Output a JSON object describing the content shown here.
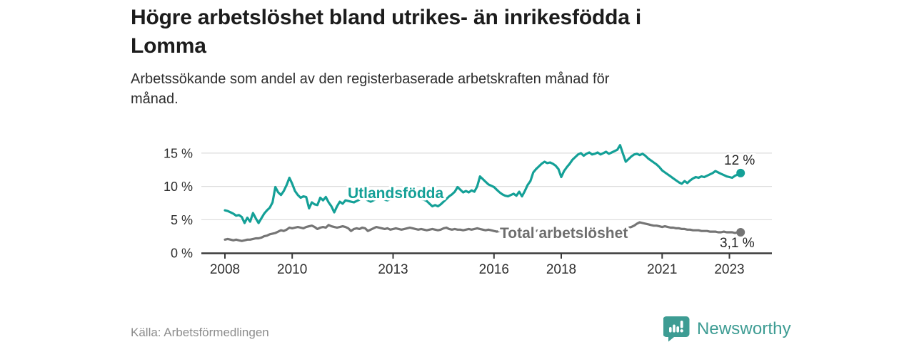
{
  "header": {
    "title_line1": "Högre arbetslöshet bland utrikes- än inrikesfödda i",
    "title_line2": "Lomma",
    "subtitle_line1": "Arbetssökande som andel av den registerbaserade arbetskraften månad för",
    "subtitle_line2": "månad."
  },
  "footer": {
    "source": "Källa: Arbetsförmedlingen",
    "brand": "Newsworthy"
  },
  "colors": {
    "accent_teal": "#14A097",
    "gray_line": "#757575",
    "gray_label": "#6e6e6e",
    "axis": "#3a3a3a",
    "grid": "#dcdcdc"
  },
  "chart_data": {
    "type": "line",
    "title": "Högre arbetslöshet bland utrikes- än inrikesfödda i Lomma",
    "subtitle": "Arbetssökande som andel av den registerbaserade arbetskraften månad för månad.",
    "x_unit": "month",
    "x_start": "2008-01",
    "x_tick_years": [
      2008,
      2010,
      2013,
      2016,
      2018,
      2021,
      2023
    ],
    "y_ticks": [
      0,
      5,
      10,
      15
    ],
    "y_tick_suffix": " %",
    "ylim": [
      0,
      17
    ],
    "grid": "horizontal",
    "legend_position": "inline-labels",
    "series": [
      {
        "name": "Utlandsfödda",
        "color": "#14A097",
        "end_label": "12 %",
        "values": [
          6.4,
          6.3,
          6.1,
          5.9,
          5.6,
          5.7,
          5.4,
          4.5,
          5.3,
          4.7,
          6.0,
          5.2,
          4.5,
          5.2,
          5.9,
          6.4,
          6.8,
          7.6,
          9.9,
          9.1,
          8.7,
          9.3,
          10.2,
          11.3,
          10.4,
          9.3,
          8.7,
          8.3,
          8.5,
          8.4,
          6.7,
          7.6,
          7.3,
          7.2,
          8.3,
          7.9,
          8.4,
          7.6,
          7.0,
          6.1,
          7.0,
          7.7,
          7.4,
          7.9,
          7.8,
          7.7,
          7.6,
          7.8,
          8.0,
          8.3,
          8.1,
          7.9,
          7.7,
          7.9,
          8.1,
          8.4,
          8.2,
          8.0,
          7.9,
          8.1,
          8.3,
          8.5,
          8.4,
          8.2,
          8.4,
          8.6,
          8.8,
          8.6,
          8.5,
          8.3,
          8.1,
          8.0,
          7.8,
          7.4,
          7.0,
          7.2,
          7.0,
          7.3,
          7.7,
          8.1,
          8.5,
          8.8,
          9.2,
          9.9,
          9.5,
          9.1,
          9.3,
          9.1,
          9.4,
          9.2,
          10.0,
          11.5,
          11.1,
          10.7,
          10.3,
          10.1,
          9.9,
          9.5,
          9.1,
          8.8,
          8.6,
          8.5,
          8.7,
          8.9,
          8.6,
          9.2,
          8.5,
          9.3,
          10.2,
          10.8,
          12.1,
          12.6,
          13.0,
          13.4,
          13.7,
          13.5,
          13.6,
          13.4,
          13.1,
          12.6,
          11.4,
          12.3,
          12.9,
          13.4,
          14.0,
          14.4,
          14.8,
          15.0,
          14.6,
          14.9,
          15.1,
          14.8,
          14.9,
          15.1,
          14.8,
          15.0,
          15.2,
          14.9,
          15.1,
          15.3,
          15.5,
          16.2,
          14.9,
          13.7,
          14.1,
          14.5,
          14.8,
          14.9,
          14.7,
          14.9,
          14.6,
          14.2,
          13.9,
          13.6,
          13.3,
          12.9,
          12.4,
          12.1,
          11.8,
          11.5,
          11.2,
          10.9,
          10.6,
          10.4,
          10.8,
          10.5,
          10.9,
          11.2,
          11.4,
          11.3,
          11.5,
          11.4,
          11.6,
          11.8,
          12.0,
          12.3,
          12.1,
          11.9,
          11.7,
          11.5,
          11.4,
          11.3,
          11.6,
          11.8,
          12.0
        ]
      },
      {
        "name": "Total arbetslöshet",
        "color": "#757575",
        "end_label": "3,1 %",
        "values": [
          2.0,
          2.1,
          2.0,
          1.9,
          2.0,
          1.9,
          1.8,
          1.9,
          2.0,
          2.0,
          2.1,
          2.2,
          2.2,
          2.3,
          2.5,
          2.6,
          2.8,
          2.9,
          3.0,
          3.2,
          3.4,
          3.3,
          3.5,
          3.8,
          3.7,
          3.8,
          3.9,
          3.8,
          3.7,
          3.9,
          4.0,
          4.1,
          3.9,
          3.6,
          3.8,
          3.9,
          3.8,
          4.2,
          4.0,
          3.9,
          3.8,
          3.9,
          4.0,
          3.9,
          3.7,
          3.3,
          3.6,
          3.7,
          3.6,
          3.8,
          3.7,
          3.3,
          3.5,
          3.7,
          3.9,
          3.8,
          3.7,
          3.6,
          3.7,
          3.5,
          3.6,
          3.7,
          3.6,
          3.5,
          3.6,
          3.7,
          3.8,
          3.7,
          3.6,
          3.5,
          3.6,
          3.5,
          3.4,
          3.5,
          3.6,
          3.5,
          3.4,
          3.5,
          3.7,
          3.8,
          3.6,
          3.5,
          3.6,
          3.5,
          3.5,
          3.4,
          3.5,
          3.6,
          3.5,
          3.6,
          3.7,
          3.6,
          3.5,
          3.4,
          3.5,
          3.4,
          3.3,
          3.2,
          3.3,
          3.4,
          3.3,
          3.2,
          3.3,
          3.4,
          3.3,
          3.2,
          3.3,
          3.4,
          3.4,
          3.5,
          3.4,
          3.3,
          3.4,
          3.5,
          3.5,
          3.4,
          3.3,
          3.4,
          3.3,
          3.2,
          3.2,
          3.3,
          3.2,
          3.1,
          3.2,
          3.3,
          3.4,
          3.3,
          3.2,
          3.2,
          3.3,
          3.2,
          3.2,
          3.3,
          3.4,
          3.3,
          3.4,
          3.5,
          3.5,
          3.4,
          3.5,
          3.6,
          3.6,
          3.7,
          3.8,
          3.9,
          4.1,
          4.4,
          4.6,
          4.5,
          4.4,
          4.3,
          4.2,
          4.1,
          4.1,
          4.0,
          3.9,
          4.0,
          3.9,
          3.8,
          3.8,
          3.7,
          3.7,
          3.6,
          3.6,
          3.5,
          3.5,
          3.4,
          3.4,
          3.4,
          3.3,
          3.3,
          3.3,
          3.2,
          3.2,
          3.2,
          3.1,
          3.1,
          3.2,
          3.1,
          3.1,
          3.1,
          3.0,
          3.1,
          3.1
        ]
      }
    ]
  }
}
